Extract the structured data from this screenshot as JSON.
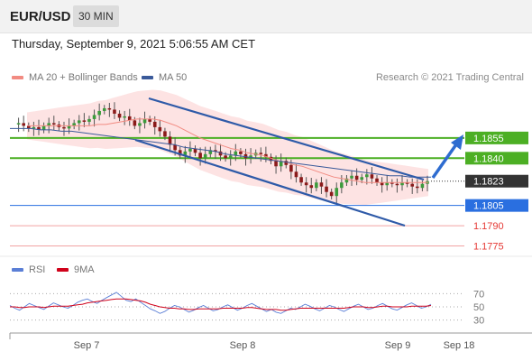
{
  "header": {
    "pair": "EUR/USD",
    "interval": "30 MIN"
  },
  "timestamp": "Thursday, September 9, 2021 5:06:55 AM CET",
  "credit": "Research © 2021 Trading Central",
  "chart_data": [
    {
      "type": "line",
      "title": "",
      "legend": [
        {
          "name": "MA 20 + Bollinger Bands",
          "color": "#f28b82"
        },
        {
          "name": "MA 50",
          "color": "#3a5a9a"
        }
      ],
      "ylim": [
        1.177,
        1.1885
      ],
      "levels": [
        {
          "label": "1.1855",
          "value": 1.1855,
          "color": "#4caf24",
          "kind": "resistance"
        },
        {
          "label": "1.1840",
          "value": 1.184,
          "color": "#4caf24",
          "kind": "resistance"
        },
        {
          "label": "1.1823",
          "value": 1.1823,
          "color": "#333333",
          "kind": "current"
        },
        {
          "label": "1.1805",
          "value": 1.1805,
          "color": "#2a6fe0",
          "kind": "pivot"
        },
        {
          "label": "1.1790",
          "value": 1.179,
          "color": "#e53935",
          "kind": "support"
        },
        {
          "label": "1.1775",
          "value": 1.1775,
          "color": "#e53935",
          "kind": "support"
        }
      ],
      "price": [
        1.1865,
        1.1866,
        1.1864,
        1.1862,
        1.1863,
        1.1861,
        1.1864,
        1.1866,
        1.1865,
        1.1863,
        1.1862,
        1.1864,
        1.1866,
        1.1868,
        1.1867,
        1.1869,
        1.1872,
        1.1875,
        1.1877,
        1.1876,
        1.1873,
        1.187,
        1.1871,
        1.1868,
        1.1864,
        1.1866,
        1.1869,
        1.1867,
        1.1863,
        1.186,
        1.1856,
        1.185,
        1.1846,
        1.1842,
        1.1845,
        1.1847,
        1.1844,
        1.184,
        1.1843,
        1.1846,
        1.1845,
        1.1842,
        1.184,
        1.1842,
        1.1845,
        1.1843,
        1.184,
        1.1842,
        1.1844,
        1.1843,
        1.1841,
        1.1838,
        1.1834,
        1.1838,
        1.1835,
        1.183,
        1.1826,
        1.1822,
        1.182,
        1.1818,
        1.1822,
        1.1819,
        1.1815,
        1.1812,
        1.1818,
        1.1822,
        1.1825,
        1.1827,
        1.1824,
        1.1826,
        1.1828,
        1.1825,
        1.1822,
        1.182,
        1.1822,
        1.1821,
        1.182,
        1.1822,
        1.1821,
        1.1819,
        1.1818,
        1.1821,
        1.1823
      ],
      "ma20": [
        1.1864,
        1.1864,
        1.1864,
        1.1864,
        1.1864,
        1.1864,
        1.1864,
        1.1864,
        1.1864,
        1.1865,
        1.1865,
        1.1866,
        1.1867,
        1.1868,
        1.1869,
        1.1869,
        1.1869,
        1.1868,
        1.1866,
        1.1864,
        1.1861,
        1.1858,
        1.1855,
        1.1853,
        1.1851,
        1.1849,
        1.1847,
        1.1846,
        1.1844,
        1.1843,
        1.1842,
        1.184,
        1.1838,
        1.1837,
        1.1835,
        1.1834,
        1.1832,
        1.183,
        1.1828,
        1.1826,
        1.1825,
        1.1824,
        1.1823,
        1.1822,
        1.1822,
        1.1822,
        1.1822,
        1.1822,
        1.1822,
        1.1822,
        1.1822,
        1.1822
      ],
      "ma50": [
        1.1862,
        1.1862,
        1.1862,
        1.1861,
        1.1861,
        1.186,
        1.186,
        1.1859,
        1.1858,
        1.1857,
        1.1856,
        1.1855,
        1.1854,
        1.1853,
        1.1852,
        1.1851,
        1.185,
        1.1848,
        1.1847,
        1.1846,
        1.1845,
        1.1843,
        1.1842,
        1.1841,
        1.184,
        1.1839,
        1.1838,
        1.1837,
        1.1836,
        1.1835,
        1.1834,
        1.1833,
        1.1832,
        1.1831,
        1.183,
        1.1829,
        1.1828,
        1.1827,
        1.1827,
        1.1826,
        1.1826,
        1.1826
      ]
    },
    {
      "type": "line",
      "title": "",
      "legend": [
        {
          "name": "RSI",
          "color": "#5b7fd6"
        },
        {
          "name": "9MA",
          "color": "#d0021b"
        }
      ],
      "ylim": [
        20,
        80
      ],
      "yticks": [
        70,
        50,
        30
      ],
      "rsi": [
        52,
        48,
        45,
        50,
        55,
        52,
        49,
        46,
        51,
        56,
        53,
        50,
        48,
        52,
        57,
        60,
        62,
        58,
        55,
        60,
        64,
        68,
        72,
        66,
        60,
        58,
        62,
        57,
        52,
        47,
        44,
        40,
        43,
        48,
        52,
        50,
        46,
        42,
        45,
        49,
        52,
        48,
        44,
        46,
        50,
        53,
        49,
        45,
        48,
        52,
        55,
        51,
        47,
        43,
        46,
        42,
        40,
        44,
        48,
        46,
        50,
        54,
        51,
        47,
        44,
        48,
        52,
        50,
        46,
        43,
        47,
        51,
        54,
        50,
        46,
        48,
        52,
        55,
        51,
        47,
        45,
        49,
        53,
        56,
        52,
        48,
        50,
        54
      ],
      "ma9": [
        50,
        50,
        49,
        49,
        50,
        50,
        50,
        49,
        50,
        51,
        51,
        51,
        51,
        52,
        53,
        54,
        56,
        57,
        58,
        59,
        60,
        61,
        62,
        62,
        62,
        61,
        60,
        59,
        57,
        54,
        52,
        50,
        49,
        48,
        48,
        47,
        47,
        46,
        46,
        47,
        47,
        47,
        47,
        47,
        48,
        48,
        48,
        48,
        48,
        49,
        49,
        48,
        47,
        46,
        46,
        46,
        45,
        45,
        46,
        47,
        48,
        48,
        48,
        48,
        48,
        48,
        48,
        48,
        48,
        48,
        49,
        50,
        50,
        50,
        49,
        49,
        50,
        51,
        51,
        50,
        50,
        50,
        50,
        51,
        51,
        51,
        51,
        52
      ]
    }
  ],
  "xaxis": {
    "ticks": [
      "Sep 7",
      "Sep 8",
      "Sep 9",
      "Sep 18"
    ]
  }
}
